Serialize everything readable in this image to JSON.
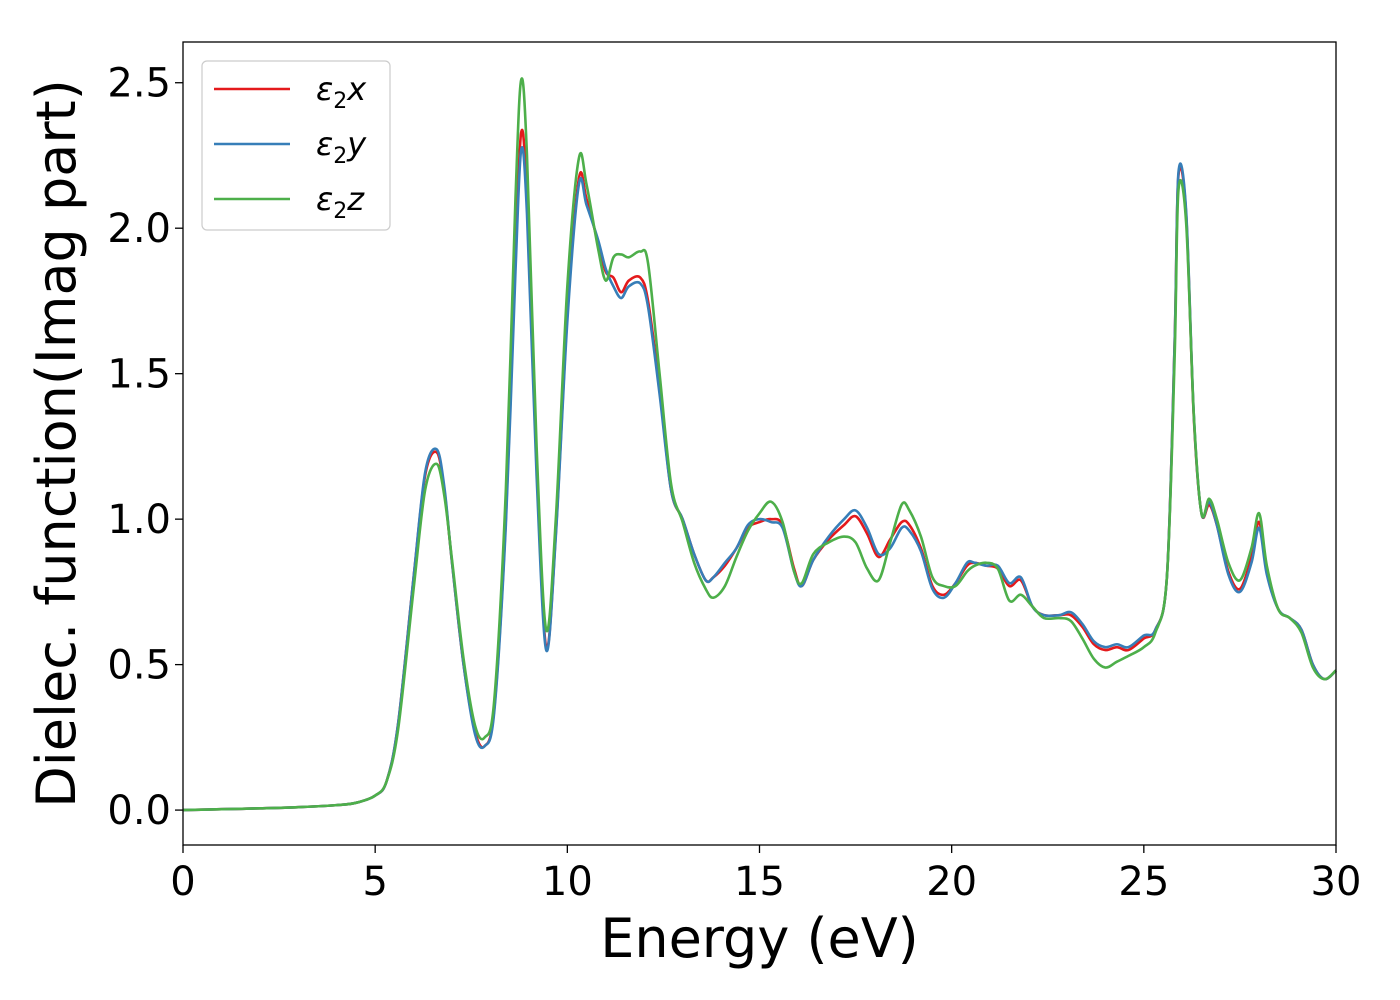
{
  "chart_data": {
    "type": "line",
    "xlabel": "Energy (eV)",
    "ylabel": "Dielec. function(Imag part)",
    "xlim": [
      0,
      30
    ],
    "ylim": [
      -0.12,
      2.64
    ],
    "xticks": [
      0,
      5,
      10,
      15,
      20,
      25,
      30
    ],
    "yticks": [
      0.0,
      0.5,
      1.0,
      1.5,
      2.0,
      2.5
    ],
    "xtick_labels": [
      "0",
      "5",
      "10",
      "15",
      "20",
      "25",
      "30"
    ],
    "ytick_labels": [
      "0.0",
      "0.5",
      "1.0",
      "1.5",
      "2.0",
      "2.5"
    ],
    "grid": false,
    "legend_position": "upper-left",
    "series": [
      {
        "name": "ε₂x",
        "legend_base": "ε",
        "legend_sub": "2",
        "legend_suffix": "x",
        "color": "#e41a1c",
        "x": [
          0,
          1,
          2,
          3,
          4,
          4.5,
          5,
          5.3,
          5.6,
          6.0,
          6.3,
          6.6,
          6.8,
          7.0,
          7.3,
          7.6,
          7.85,
          8.1,
          8.4,
          8.65,
          8.8,
          8.95,
          9.2,
          9.45,
          9.7,
          10.0,
          10.3,
          10.5,
          10.8,
          11.0,
          11.2,
          11.4,
          11.6,
          11.9,
          12.1,
          12.4,
          12.7,
          13.0,
          13.3,
          13.6,
          13.8,
          14.1,
          14.4,
          14.7,
          15.0,
          15.3,
          15.6,
          15.9,
          16.1,
          16.4,
          16.8,
          17.2,
          17.5,
          17.8,
          18.1,
          18.4,
          18.7,
          18.9,
          19.2,
          19.5,
          19.8,
          20.1,
          20.4,
          20.6,
          20.9,
          21.2,
          21.5,
          21.8,
          22.1,
          22.4,
          22.8,
          23.1,
          23.4,
          23.7,
          24.0,
          24.3,
          24.6,
          25.0,
          25.3,
          25.6,
          25.8,
          25.9,
          26.1,
          26.3,
          26.5,
          26.7,
          26.9,
          27.2,
          27.5,
          27.8,
          28.0,
          28.2,
          28.5,
          28.8,
          29.1,
          29.4,
          29.7,
          30.0
        ],
        "y": [
          0.0,
          0.003,
          0.006,
          0.01,
          0.017,
          0.025,
          0.05,
          0.1,
          0.3,
          0.8,
          1.15,
          1.23,
          1.1,
          0.85,
          0.5,
          0.27,
          0.22,
          0.35,
          1.0,
          1.9,
          2.33,
          2.1,
          1.2,
          0.56,
          0.95,
          1.7,
          2.17,
          2.1,
          1.95,
          1.85,
          1.83,
          1.78,
          1.82,
          1.83,
          1.75,
          1.45,
          1.1,
          1.0,
          0.88,
          0.79,
          0.8,
          0.84,
          0.9,
          0.97,
          0.99,
          1.0,
          0.98,
          0.83,
          0.77,
          0.86,
          0.93,
          0.98,
          1.01,
          0.95,
          0.87,
          0.93,
          0.99,
          0.98,
          0.9,
          0.77,
          0.74,
          0.78,
          0.84,
          0.85,
          0.84,
          0.83,
          0.77,
          0.79,
          0.7,
          0.67,
          0.67,
          0.67,
          0.63,
          0.57,
          0.55,
          0.56,
          0.55,
          0.59,
          0.62,
          0.8,
          1.6,
          2.18,
          2.05,
          1.35,
          1.02,
          1.05,
          0.98,
          0.82,
          0.76,
          0.87,
          0.99,
          0.82,
          0.69,
          0.66,
          0.62,
          0.5,
          0.45,
          0.48
        ]
      },
      {
        "name": "ε₂y",
        "legend_base": "ε",
        "legend_sub": "2",
        "legend_suffix": "y",
        "color": "#377eb8",
        "x": [
          0,
          1,
          2,
          3,
          4,
          4.5,
          5,
          5.3,
          5.6,
          6.0,
          6.3,
          6.6,
          6.8,
          7.0,
          7.3,
          7.6,
          7.85,
          8.1,
          8.4,
          8.65,
          8.8,
          8.95,
          9.2,
          9.45,
          9.7,
          10.0,
          10.3,
          10.5,
          10.8,
          11.0,
          11.2,
          11.4,
          11.6,
          11.9,
          12.1,
          12.4,
          12.7,
          13.0,
          13.3,
          13.6,
          13.8,
          14.1,
          14.4,
          14.7,
          15.0,
          15.3,
          15.6,
          15.9,
          16.1,
          16.4,
          16.8,
          17.2,
          17.5,
          17.8,
          18.1,
          18.4,
          18.7,
          18.9,
          19.2,
          19.5,
          19.8,
          20.1,
          20.4,
          20.6,
          20.9,
          21.2,
          21.5,
          21.8,
          22.1,
          22.4,
          22.8,
          23.1,
          23.4,
          23.7,
          24.0,
          24.3,
          24.6,
          25.0,
          25.3,
          25.6,
          25.8,
          25.9,
          26.1,
          26.3,
          26.5,
          26.7,
          26.9,
          27.2,
          27.5,
          27.8,
          28.0,
          28.2,
          28.5,
          28.8,
          29.1,
          29.4,
          29.7,
          30.0
        ],
        "y": [
          0.0,
          0.003,
          0.006,
          0.01,
          0.017,
          0.025,
          0.05,
          0.1,
          0.3,
          0.8,
          1.16,
          1.24,
          1.11,
          0.85,
          0.5,
          0.26,
          0.22,
          0.34,
          0.98,
          1.85,
          2.27,
          2.05,
          1.15,
          0.55,
          0.94,
          1.68,
          2.15,
          2.08,
          1.96,
          1.86,
          1.8,
          1.76,
          1.8,
          1.81,
          1.73,
          1.43,
          1.1,
          1.0,
          0.88,
          0.79,
          0.8,
          0.85,
          0.9,
          0.98,
          1.0,
          0.99,
          0.97,
          0.82,
          0.77,
          0.86,
          0.94,
          1.0,
          1.03,
          0.97,
          0.88,
          0.9,
          0.97,
          0.96,
          0.89,
          0.76,
          0.73,
          0.78,
          0.85,
          0.85,
          0.84,
          0.84,
          0.78,
          0.8,
          0.7,
          0.67,
          0.67,
          0.68,
          0.64,
          0.58,
          0.56,
          0.57,
          0.56,
          0.6,
          0.62,
          0.8,
          1.6,
          2.19,
          2.06,
          1.36,
          1.02,
          1.06,
          0.98,
          0.81,
          0.75,
          0.85,
          0.97,
          0.81,
          0.69,
          0.66,
          0.62,
          0.5,
          0.45,
          0.48
        ]
      },
      {
        "name": "ε₂z",
        "legend_base": "ε",
        "legend_sub": "2",
        "legend_suffix": "z",
        "color": "#4daf4a",
        "x": [
          0,
          1,
          2,
          3,
          4,
          4.5,
          5,
          5.3,
          5.6,
          6.0,
          6.3,
          6.6,
          6.8,
          7.0,
          7.3,
          7.6,
          7.85,
          8.1,
          8.4,
          8.65,
          8.8,
          8.95,
          9.2,
          9.45,
          9.7,
          10.0,
          10.3,
          10.5,
          10.8,
          11.0,
          11.2,
          11.4,
          11.6,
          11.9,
          12.1,
          12.4,
          12.7,
          13.0,
          13.3,
          13.6,
          13.8,
          14.1,
          14.4,
          14.7,
          15.0,
          15.3,
          15.6,
          15.9,
          16.1,
          16.4,
          16.8,
          17.2,
          17.5,
          17.8,
          18.1,
          18.4,
          18.7,
          18.9,
          19.2,
          19.5,
          19.8,
          20.1,
          20.4,
          20.6,
          20.9,
          21.2,
          21.5,
          21.8,
          22.1,
          22.4,
          22.8,
          23.1,
          23.4,
          23.7,
          24.0,
          24.3,
          24.6,
          25.0,
          25.3,
          25.6,
          25.8,
          25.9,
          26.1,
          26.3,
          26.5,
          26.7,
          26.9,
          27.2,
          27.5,
          27.8,
          28.0,
          28.2,
          28.5,
          28.8,
          29.1,
          29.4,
          29.7,
          30.0
        ],
        "y": [
          0.0,
          0.003,
          0.006,
          0.01,
          0.017,
          0.025,
          0.05,
          0.1,
          0.28,
          0.76,
          1.1,
          1.19,
          1.08,
          0.86,
          0.52,
          0.29,
          0.25,
          0.38,
          1.1,
          2.1,
          2.51,
          2.25,
          1.25,
          0.62,
          1.0,
          1.8,
          2.24,
          2.15,
          1.93,
          1.82,
          1.9,
          1.91,
          1.9,
          1.92,
          1.88,
          1.5,
          1.12,
          0.99,
          0.85,
          0.76,
          0.73,
          0.77,
          0.87,
          0.96,
          1.02,
          1.06,
          0.99,
          0.82,
          0.78,
          0.88,
          0.92,
          0.94,
          0.92,
          0.83,
          0.79,
          0.92,
          1.05,
          1.03,
          0.94,
          0.8,
          0.77,
          0.77,
          0.82,
          0.84,
          0.85,
          0.83,
          0.72,
          0.74,
          0.7,
          0.66,
          0.66,
          0.65,
          0.59,
          0.52,
          0.49,
          0.51,
          0.53,
          0.56,
          0.61,
          0.8,
          1.55,
          2.13,
          2.02,
          1.36,
          1.02,
          1.07,
          1.0,
          0.85,
          0.79,
          0.9,
          1.02,
          0.84,
          0.69,
          0.66,
          0.61,
          0.49,
          0.45,
          0.48
        ]
      }
    ]
  }
}
